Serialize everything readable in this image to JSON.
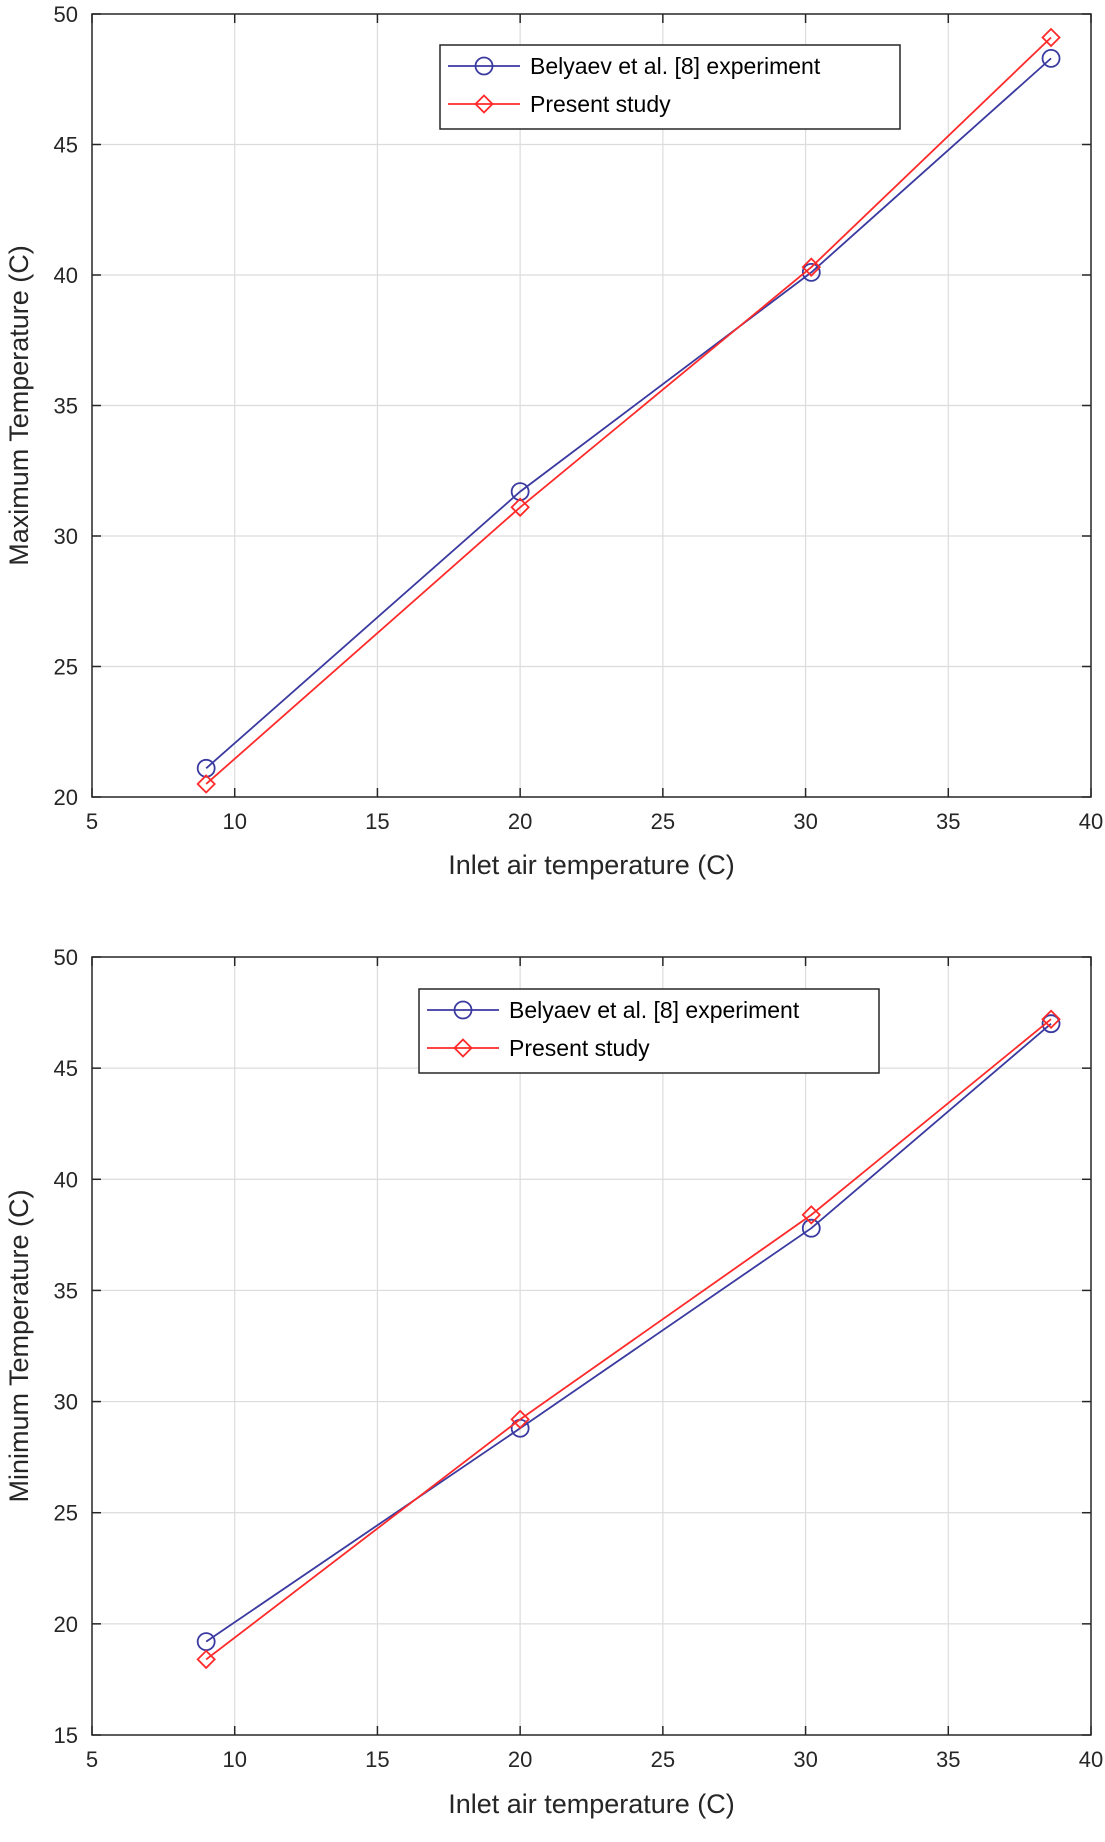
{
  "chart_data": [
    {
      "type": "line",
      "title": "",
      "xlabel": "Inlet air temperature (C)",
      "ylabel": "Maximum Temperature (C)",
      "xlim": [
        5,
        40
      ],
      "ylim": [
        20,
        50
      ],
      "xticks": [
        5,
        10,
        15,
        20,
        25,
        30,
        35,
        40
      ],
      "yticks": [
        20,
        25,
        30,
        35,
        40,
        45,
        50
      ],
      "grid": true,
      "legend_position": "top-right",
      "series": [
        {
          "name": "Belyaev et al. [8] experiment",
          "color": "#3a3aa0",
          "marker": "circle",
          "x": [
            9,
            20,
            30.2,
            38.6
          ],
          "y": [
            21.1,
            31.7,
            40.1,
            48.3
          ]
        },
        {
          "name": "Present study",
          "color": "#ff2a2a",
          "marker": "diamond",
          "x": [
            9,
            20,
            30.2,
            38.6
          ],
          "y": [
            20.5,
            31.1,
            40.3,
            49.1
          ]
        }
      ]
    },
    {
      "type": "line",
      "title": "",
      "xlabel": "Inlet air temperature (C)",
      "ylabel": "Minimum Temperature (C)",
      "xlim": [
        5,
        40
      ],
      "ylim": [
        15,
        50
      ],
      "xticks": [
        5,
        10,
        15,
        20,
        25,
        30,
        35,
        40
      ],
      "yticks": [
        15,
        20,
        25,
        30,
        35,
        40,
        45,
        50
      ],
      "grid": true,
      "legend_position": "top-right",
      "series": [
        {
          "name": "Belyaev et al. [8] experiment",
          "color": "#3a3aa0",
          "marker": "circle",
          "x": [
            9,
            20,
            30.2,
            38.6
          ],
          "y": [
            19.2,
            28.8,
            37.8,
            47
          ]
        },
        {
          "name": "Present study",
          "color": "#ff2a2a",
          "marker": "diamond",
          "x": [
            9,
            20,
            30.2,
            38.6
          ],
          "y": [
            18.4,
            29.2,
            38.4,
            47.2
          ]
        }
      ]
    }
  ]
}
